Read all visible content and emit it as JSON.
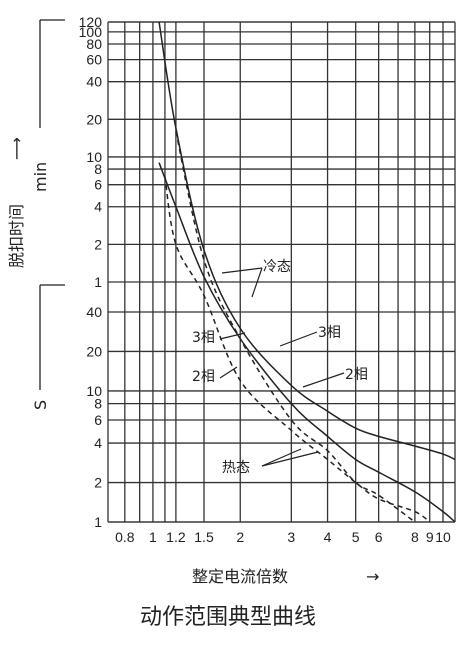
{
  "chart_data": {
    "type": "line",
    "title": "动作范围典型曲线",
    "xlabel": "整定电流倍数",
    "x_arrow": "→",
    "ylabel": "脱扣时间",
    "y_unit_min": "min",
    "y_unit_s": "S",
    "x_scale": "log",
    "y_scale": "log",
    "xlim": [
      0.7,
      11
    ],
    "x_ticks": [
      "0.8",
      "1",
      "1.2",
      "1.5",
      "2",
      "3",
      "4",
      "5",
      "6",
      "8",
      "9",
      "10"
    ],
    "y_ticks_min": [
      "120",
      "100",
      "80",
      "60",
      "40",
      "20",
      "10",
      "8",
      "6",
      "4",
      "2",
      "1"
    ],
    "y_ticks_s": [
      "40",
      "20",
      "10",
      "8",
      "6",
      "4",
      "2",
      "1"
    ],
    "grid": true,
    "annotations": [
      "冷态",
      "3相",
      "2相",
      "3相",
      "2相",
      "热态"
    ],
    "series": [
      {
        "style": "solid",
        "x": [
          1.05,
          1.2,
          1.5,
          2,
          3,
          4,
          5,
          6,
          8,
          10,
          11
        ],
        "y": [
          "120 min",
          "17 min",
          "1.8 min",
          "30 s",
          "11 s",
          "7 s",
          "5.2 s",
          "4.5 s",
          "3.8 s",
          "3.3 s",
          "3 s"
        ]
      },
      {
        "style": "solid",
        "x": [
          1.05,
          1.2,
          1.5,
          2,
          3,
          4,
          5,
          6,
          8,
          10,
          11
        ],
        "y": [
          "9 min",
          "4 min",
          "1.1 min",
          "25 s",
          "8 s",
          "4.5 s",
          "3 s",
          "2.4 s",
          "1.7 s",
          "1.2 s",
          "1 s"
        ]
      },
      {
        "style": "dashed",
        "x": [
          1.2,
          1.5,
          2,
          3,
          4,
          5,
          6,
          8
        ],
        "y": [
          "16 min",
          "1.5 min",
          "25 s",
          "6 s",
          "3.5 s",
          "2 s",
          "1.6 s",
          "1 s"
        ]
      },
      {
        "style": "dashed",
        "x": [
          1.1,
          1.2,
          1.5,
          2,
          3,
          4,
          5,
          6,
          8,
          9
        ],
        "y": [
          "7 min",
          "2 min",
          "50 s",
          "12 s",
          "5 s",
          "3 s",
          "2 s",
          "1.5 s",
          "1.2 s",
          "1 s"
        ]
      }
    ]
  }
}
